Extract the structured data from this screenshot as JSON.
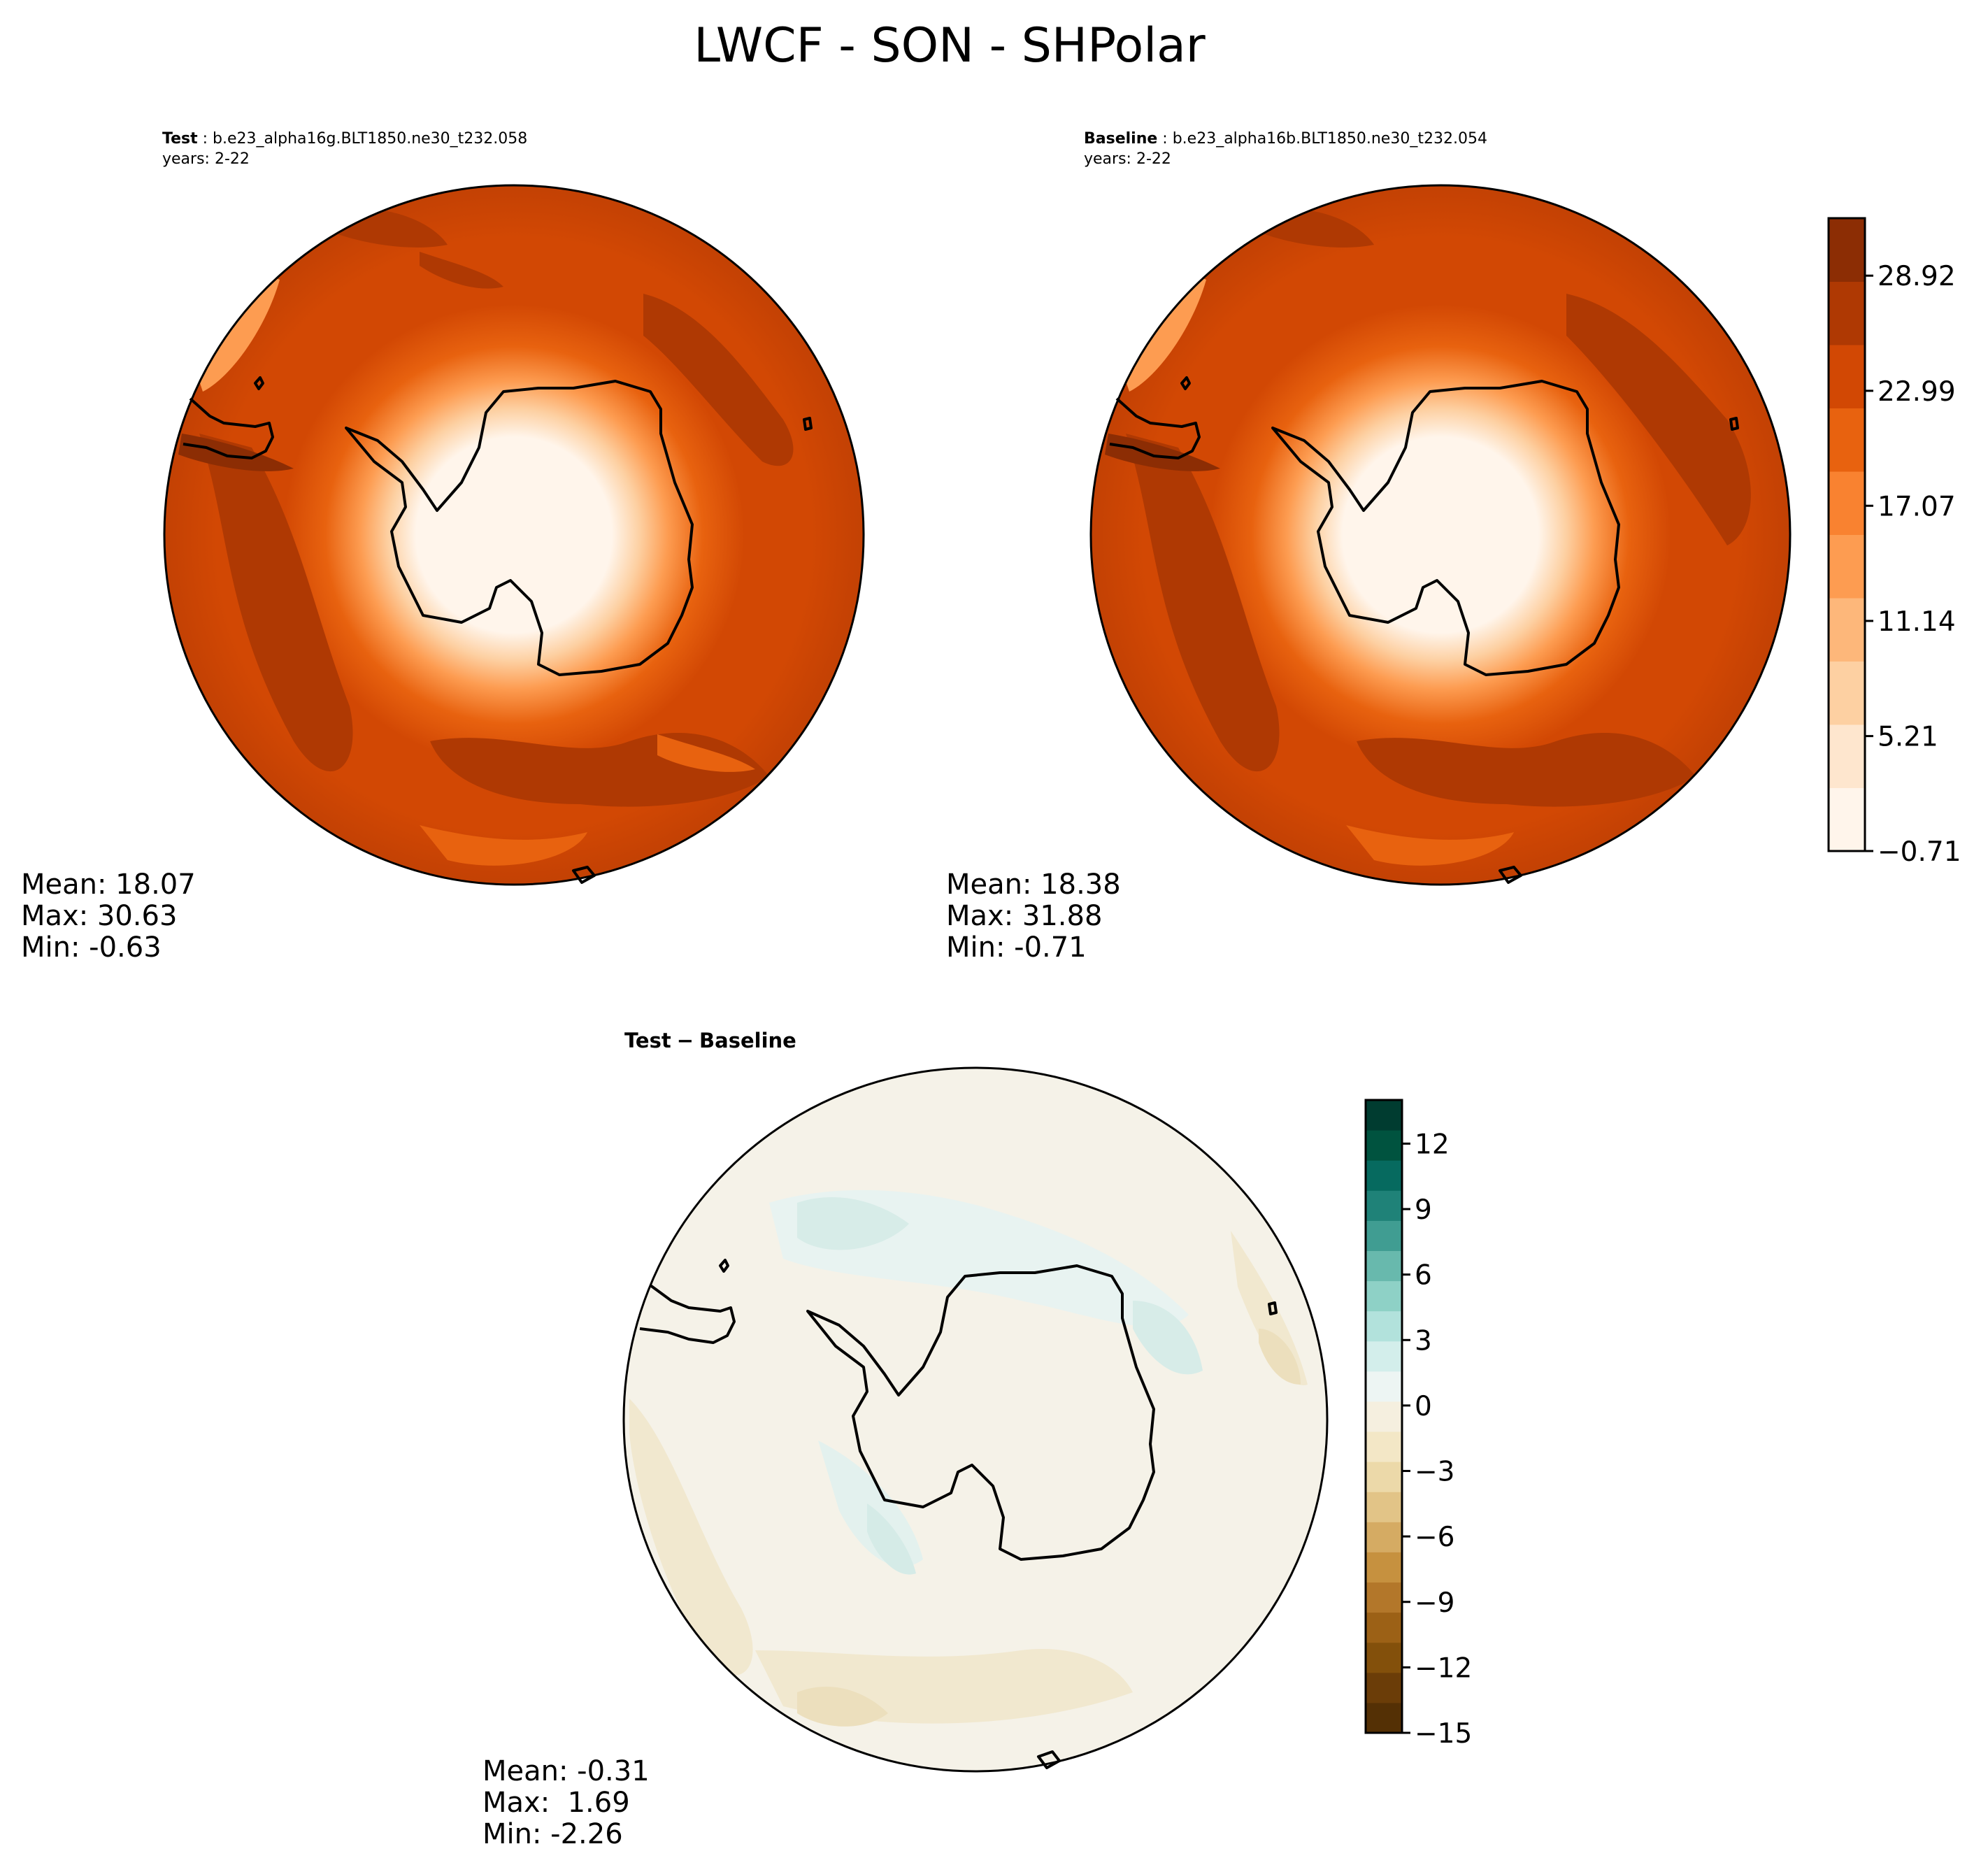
{
  "figure_title": "LWCF - SON - SHPolar",
  "chart_data": [
    {
      "type": "contour-map",
      "panel": "test",
      "label": "Test",
      "case_name": "b.e23_alpha16g.BLT1850.ne30_t232.058",
      "years": "years: 2-22",
      "projection": "south-polar stereographic",
      "stats": {
        "mean": "Mean: 18.07",
        "max": "Max: 30.63",
        "min": "Min: -0.63"
      },
      "mean": 18.07,
      "max": 30.63,
      "min": -0.63
    },
    {
      "type": "contour-map",
      "panel": "baseline",
      "label": "Baseline",
      "case_name": "b.e23_alpha16b.BLT1850.ne30_t232.054",
      "years": "years: 2-22",
      "projection": "south-polar stereographic",
      "stats": {
        "mean": "Mean: 18.38",
        "max": "Max: 31.88",
        "min": "Min: -0.71"
      },
      "mean": 18.38,
      "max": 31.88,
      "min": -0.71
    },
    {
      "type": "contour-map",
      "panel": "difference",
      "title_left": "Test",
      "title_op": "−",
      "title_right": "Baseline",
      "projection": "south-polar stereographic",
      "stats": {
        "mean": "Mean: -0.31",
        "max": "Max:  1.69",
        "min": "Min: -2.26"
      },
      "mean": -0.31,
      "max": 1.69,
      "min": -2.26
    }
  ],
  "colorbars": {
    "main": {
      "range": [
        -0.71,
        31.88
      ],
      "ticks": [
        -0.71,
        5.21,
        11.14,
        17.07,
        22.99,
        28.92
      ],
      "tick_labels": [
        "−0.71",
        "5.21",
        "11.14",
        "17.07",
        "22.99",
        "28.92"
      ],
      "colors": [
        "#fff5eb",
        "#fee6ce",
        "#fdd0a2",
        "#fdb77a",
        "#fd9c51",
        "#f98230",
        "#e8620f",
        "#d24804",
        "#af3903",
        "#8c2d04"
      ]
    },
    "diff": {
      "range": [
        -15,
        14
      ],
      "ticks": [
        -15,
        -12,
        -9,
        -6,
        -3,
        0,
        3,
        6,
        9,
        12
      ],
      "tick_labels": [
        "−15",
        "−12",
        "−9",
        "−6",
        "−3",
        "0",
        "3",
        "6",
        "9",
        "12"
      ],
      "colors": [
        "#543005",
        "#6b3d08",
        "#83500b",
        "#9c6116",
        "#b3772a",
        "#c6913f",
        "#d5ab63",
        "#e2c487",
        "#ecd9a9",
        "#f3e7c6",
        "#f5efdf",
        "#edf5f3",
        "#d3eeeb",
        "#b2e2dc",
        "#8ed1c6",
        "#68b9ad",
        "#409d92",
        "#1f8278",
        "#066a5f",
        "#00533f",
        "#003c30"
      ]
    }
  }
}
